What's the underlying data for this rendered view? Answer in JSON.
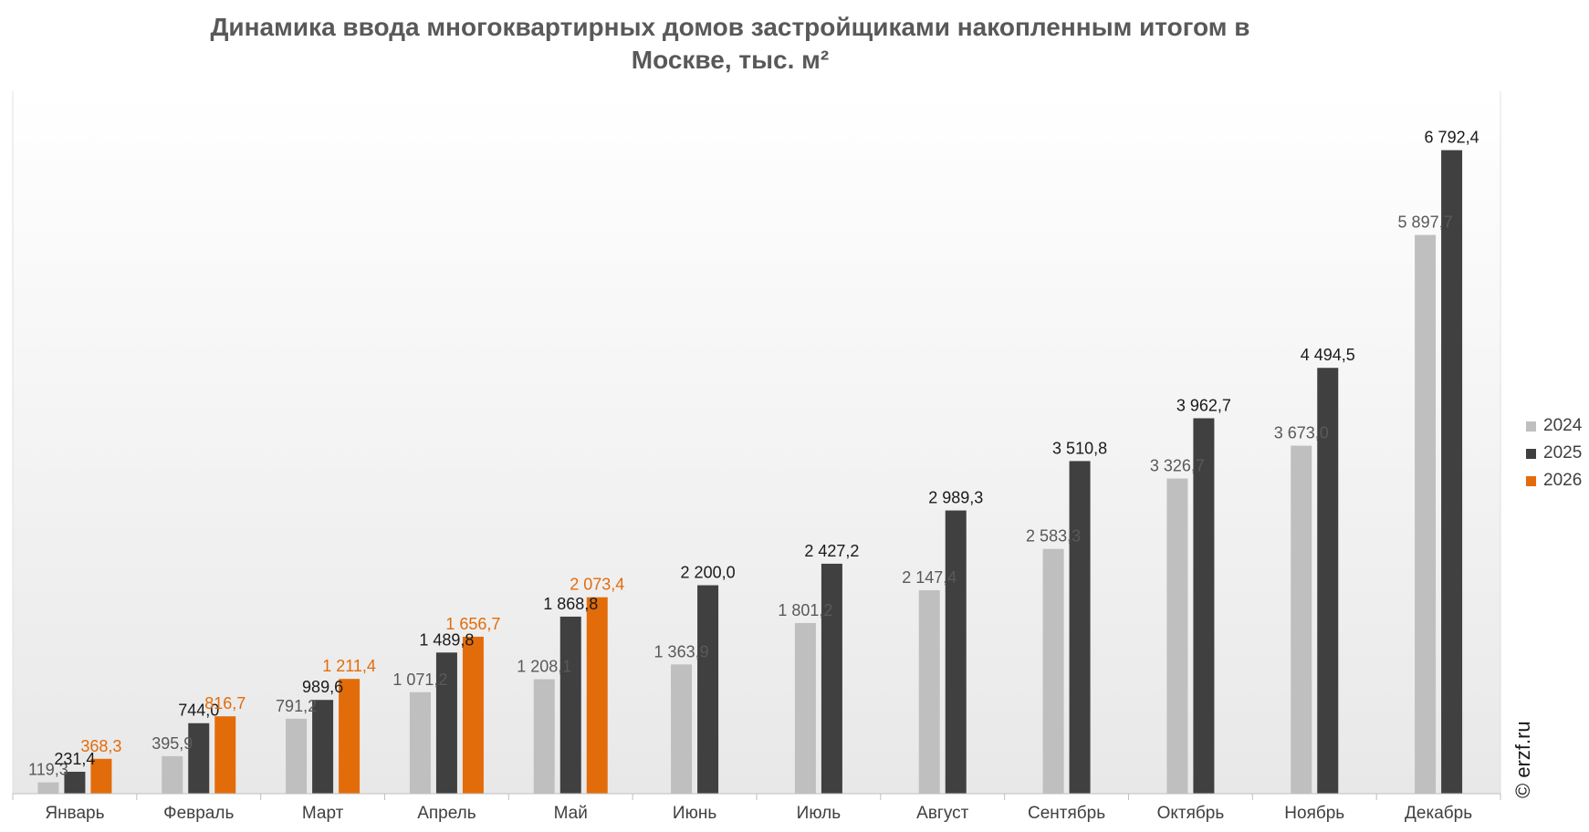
{
  "chart_data": {
    "type": "bar",
    "title_lines": [
      "Динамика ввода многоквартирных домов застройщиками накопленным итогом в",
      "Москве, тыс. м²"
    ],
    "categories": [
      "Январь",
      "Февраль",
      "Март",
      "Апрель",
      "Май",
      "Июнь",
      "Июль",
      "Август",
      "Сентябрь",
      "Октябрь",
      "Ноябрь",
      "Декабрь"
    ],
    "series": [
      {
        "name": "2024",
        "color": "#bfbfbf",
        "label_color": "#595959",
        "values": [
          119.3,
          395.9,
          791.2,
          1071.2,
          1208.1,
          1363.9,
          1801.2,
          2147.4,
          2583.3,
          3326.7,
          3673.0,
          5897.7
        ],
        "labels": [
          "119,3",
          "395,9",
          "791,2",
          "1 071,2",
          "1 208,1",
          "1 363,9",
          "1 801,2",
          "2 147,4",
          "2 583,3",
          "3 326,7",
          "3 673,0",
          "5 897,7"
        ]
      },
      {
        "name": "2025",
        "color": "#404040",
        "label_color": "#1a1a1a",
        "values": [
          231.4,
          744.0,
          989.6,
          1489.8,
          1868.8,
          2200.0,
          2427.2,
          2989.3,
          3510.8,
          3962.7,
          4494.5,
          6792.4
        ],
        "labels": [
          "231,4",
          "744,0",
          "989,6",
          "1 489,8",
          "1 868,8",
          "2 200,0",
          "2 427,2",
          "2 989,3",
          "3 510,8",
          "3 962,7",
          "4 494,5",
          "6 792,4"
        ]
      },
      {
        "name": "2026",
        "color": "#e36c0a",
        "label_color": "#e36c0a",
        "values": [
          368.3,
          816.7,
          1211.4,
          1656.7,
          2073.4,
          null,
          null,
          null,
          null,
          null,
          null,
          null
        ],
        "labels": [
          "368,3",
          "816,7",
          "1 211,4",
          "1 656,7",
          "2 073,4",
          null,
          null,
          null,
          null,
          null,
          null,
          null
        ]
      }
    ],
    "ylim": [
      0,
      7500
    ],
    "xlabel": "",
    "ylabel": "",
    "legend_position": "right",
    "grid": false
  },
  "watermark": "© erzf.ru"
}
